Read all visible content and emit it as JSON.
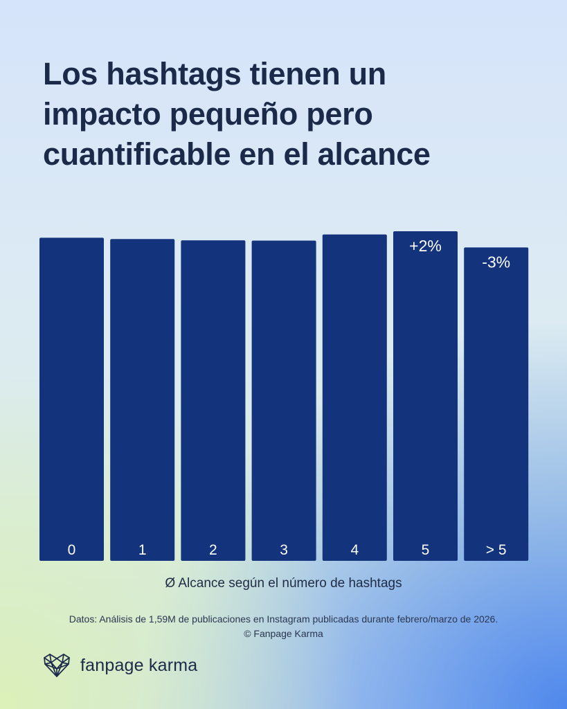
{
  "title_lines": [
    "Los hashtags tienen un",
    "impacto pequeño pero",
    "cuantificable en el alcance"
  ],
  "chart_data": {
    "type": "bar",
    "categories": [
      "0",
      "1",
      "2",
      "3",
      "4",
      "5",
      "> 5"
    ],
    "values": [
      100,
      99.6,
      99.2,
      99.1,
      101.0,
      102.0,
      97.0
    ],
    "data_labels": [
      "",
      "",
      "",
      "",
      "",
      "+2%",
      "-3%"
    ],
    "xlabel": "Ø Alcance según el número de hashtags",
    "ylabel": "",
    "ylim": [
      0,
      102
    ],
    "grid": false,
    "legend": "none",
    "bar_color": "#13337c",
    "label_color": "#ffffff"
  },
  "source_lines": [
    "Datos: Análisis de 1,59M de publicaciones en Instagram publicadas durante febrero/marzo de 2026.",
    "© Fanpage Karma"
  ],
  "brand": {
    "name": "fanpage karma",
    "logo_icon": "heart-network-icon"
  }
}
